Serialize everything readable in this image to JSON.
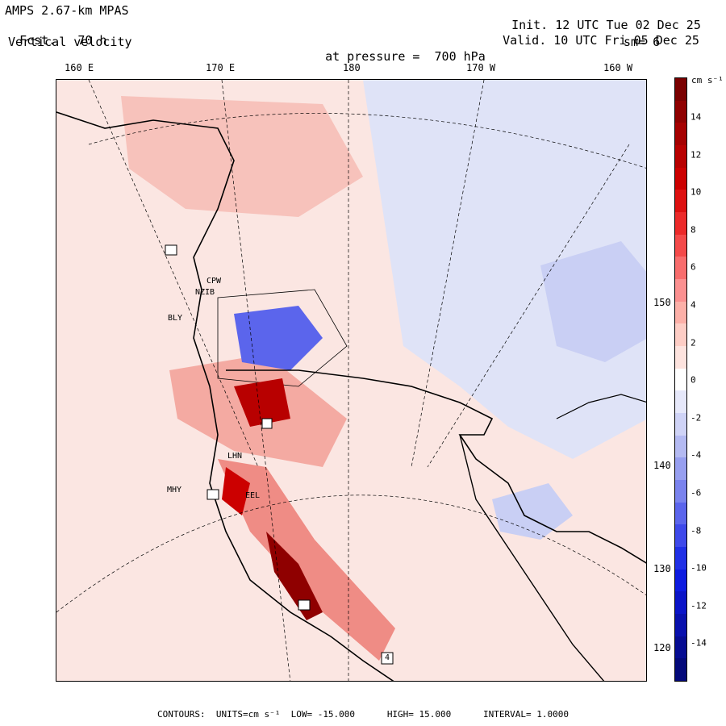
{
  "header": {
    "model": "AMPS 2.67-km MPAS",
    "init_label": "Init.",
    "init_value": "12 UTC Tue 02 Dec 25",
    "fcst_label": "Fcst.",
    "fcst_value": "70 h",
    "valid_label": "Valid.",
    "valid_value": "10 UTC Fri 05 Dec 25",
    "field": "Vertical velocity",
    "pressure_label": "at pressure =",
    "pressure_value": "700 hPa",
    "smooth": "sm= 6"
  },
  "longitude_labels": [
    "160 E",
    "170 E",
    "180",
    "170 W",
    "160 W"
  ],
  "latitude_labels": [
    "150 W",
    "140 W",
    "130 W",
    "120 W"
  ],
  "colorbar": {
    "unit": "cm s⁻¹",
    "ticks": [
      "14",
      "12",
      "10",
      "8",
      "6",
      "4",
      "2",
      "0",
      "-2",
      "-4",
      "-6",
      "-8",
      "-10",
      "-12",
      "-14"
    ],
    "colors": [
      "#7a0000",
      "#8f0000",
      "#a50000",
      "#b80000",
      "#cc0000",
      "#dd1010",
      "#ec2a2a",
      "#f44a4a",
      "#f86d6d",
      "#fb9090",
      "#fcb0a8",
      "#fdcdc5",
      "#fde3de",
      "#ffffff",
      "#e6e8fa",
      "#cfd3f6",
      "#b4baf2",
      "#979ff0",
      "#7a83ee",
      "#5b65ec",
      "#3e49ea",
      "#2030e6",
      "#0d1be0",
      "#0a14c8",
      "#0810ad",
      "#060c92",
      "#04097a"
    ]
  },
  "stations": [
    {
      "label": "CPW"
    },
    {
      "label": "NZIB"
    },
    {
      "label": "BLY"
    },
    {
      "label": "LHN"
    },
    {
      "label": "MHY"
    },
    {
      "label": "EEL"
    },
    {
      "label": "4"
    }
  ],
  "footer": {
    "contours_label": "CONTOURS:",
    "units": "UNITS=cm s⁻¹",
    "low": "LOW= -15.000",
    "high": "HIGH= 15.000",
    "interval": "INTERVAL= 1.0000"
  }
}
